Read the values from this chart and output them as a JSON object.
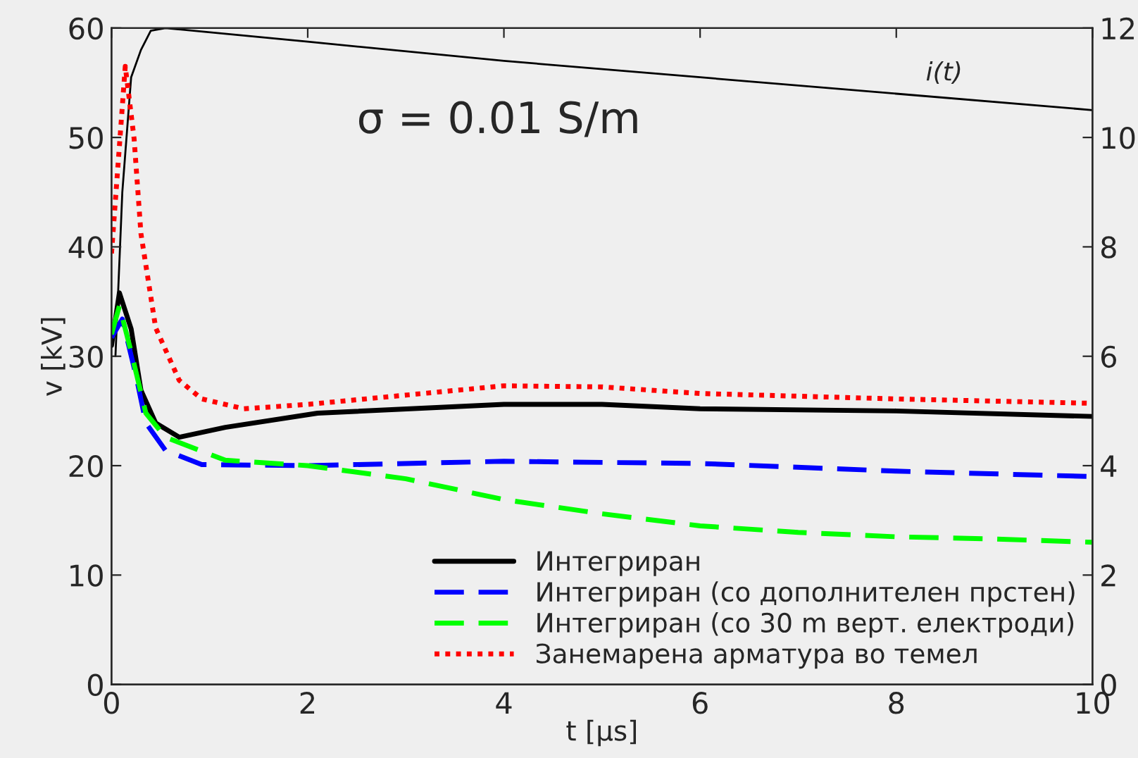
{
  "chart_data": {
    "type": "line",
    "xlabel": "t [μs]",
    "ylabel": "v [kV]",
    "xlim": [
      0,
      10
    ],
    "ylim": [
      0,
      60
    ],
    "y2lim": [
      0,
      12
    ],
    "xticks": [
      0,
      2,
      4,
      6,
      8,
      10
    ],
    "yticks": [
      0,
      10,
      20,
      30,
      40,
      50,
      60
    ],
    "y2ticks": [
      0,
      2,
      4,
      6,
      8,
      10,
      12
    ],
    "grid": false,
    "legend": "bottom right",
    "annotations": [
      "σ = 0.01 S/m",
      "i(t)"
    ],
    "series": [
      {
        "name": "Интегриран",
        "color": "#000000",
        "line_style": "solid",
        "x": [
          0,
          0.08,
          0.2,
          0.3,
          0.45,
          0.69,
          1.16,
          2.1,
          4,
          5,
          6,
          8,
          10
        ],
        "values": [
          31,
          35.8,
          32.5,
          26.9,
          23.9,
          22.6,
          23.5,
          24.8,
          25.6,
          25.6,
          25.2,
          25,
          24.5
        ]
      },
      {
        "name": "Интегриран (со дополнителен прстен)",
        "color": "#0000ff",
        "line_style": "dashed",
        "x": [
          0,
          0.11,
          0.25,
          0.35,
          0.55,
          0.92,
          2,
          4,
          6,
          8,
          10
        ],
        "values": [
          31.7,
          33.4,
          28.2,
          23.9,
          21.4,
          20.1,
          20,
          20.4,
          20.2,
          19.5,
          19
        ]
      },
      {
        "name": "Интегриран (со 30 m верт. електроди)",
        "color": "#00ff00",
        "line_style": "dashed",
        "x": [
          0,
          0.08,
          0.2,
          0.35,
          0.55,
          1.16,
          2,
          3,
          4,
          5,
          6,
          7,
          8,
          9,
          10
        ],
        "values": [
          32,
          34.6,
          30.4,
          24.8,
          22.6,
          20.5,
          20,
          18.8,
          16.9,
          15.6,
          14.5,
          13.9,
          13.5,
          13.3,
          13
        ]
      },
      {
        "name": "Занемарена арматура во темел",
        "color": "#ff0000",
        "line_style": "dotted",
        "x": [
          0,
          0.14,
          0.23,
          0.3,
          0.45,
          0.69,
          0.92,
          1.35,
          2,
          4,
          5,
          6,
          8,
          10
        ],
        "values": [
          39.4,
          56.5,
          49.9,
          41.2,
          32.6,
          27.8,
          26.1,
          25.2,
          25.6,
          27.3,
          27.2,
          26.6,
          26.1,
          25.7
        ]
      },
      {
        "axis": "y2",
        "color": "#000000",
        "line_style": "solid",
        "x": [
          0.04,
          0.11,
          0.2,
          0.3,
          0.4,
          0.55,
          2,
          4,
          6,
          8,
          10
        ],
        "values": [
          6,
          9,
          11.1,
          11.6,
          11.95,
          12,
          11.75,
          11.4,
          11.1,
          10.8,
          10.5
        ]
      }
    ]
  }
}
